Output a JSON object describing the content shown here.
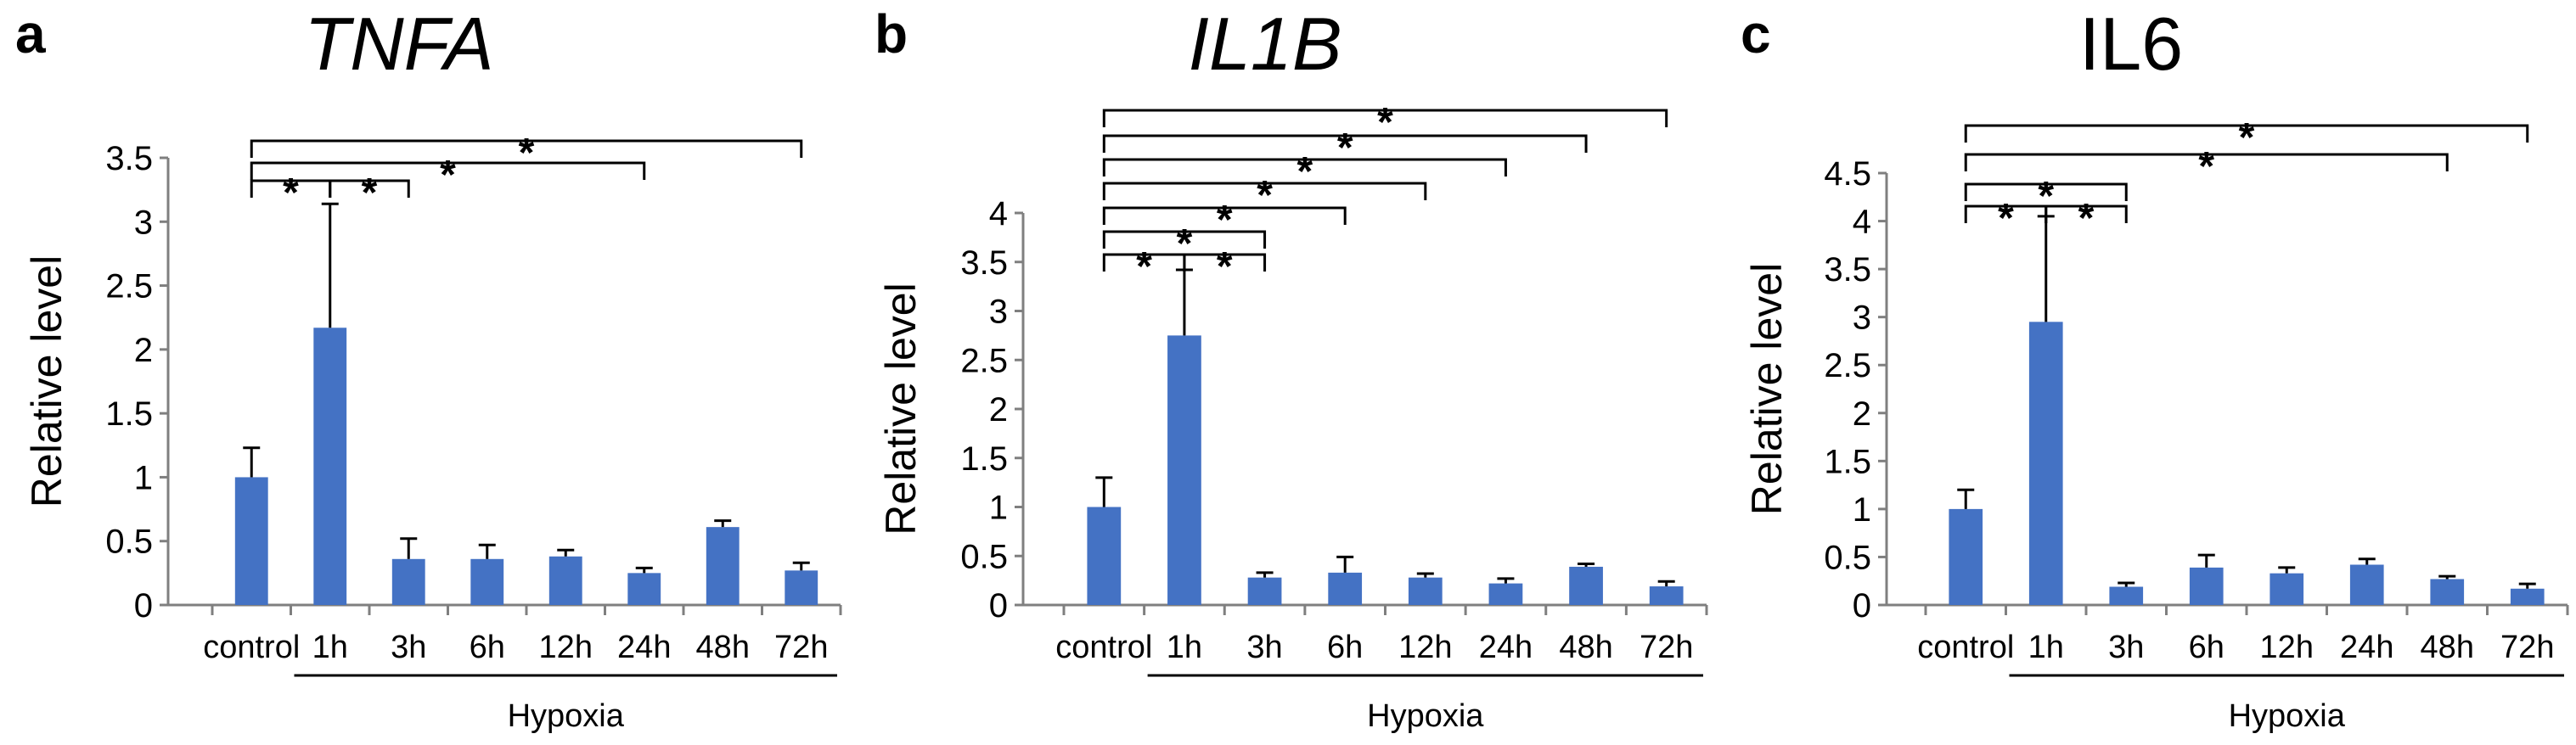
{
  "chart_data": [
    {
      "type": "bar",
      "panel": "a",
      "title": "TNFA",
      "title_italic": true,
      "xlabel": "",
      "ylabel": "Relative level",
      "group_label": "Hypoxia",
      "ylim": [
        0,
        3.5
      ],
      "yticks": [
        "0",
        "0.5",
        "1",
        "1.5",
        "2",
        "2.5",
        "3",
        "3.5"
      ],
      "categories": [
        "control",
        "1h",
        "3h",
        "6h",
        "12h",
        "24h",
        "48h",
        "72h"
      ],
      "values": [
        1.0,
        2.17,
        0.36,
        0.36,
        0.38,
        0.25,
        0.61,
        0.27
      ],
      "errors": [
        0.23,
        0.97,
        0.16,
        0.11,
        0.05,
        0.04,
        0.05,
        0.06
      ],
      "significance": [
        {
          "from": "control",
          "to": "1h",
          "label": "*"
        },
        {
          "from": "1h",
          "to": "3h",
          "label": "*"
        },
        {
          "from": "control",
          "to": "24h",
          "label": "*"
        },
        {
          "from": "control",
          "to": "72h",
          "label": "*"
        }
      ],
      "bar_color": "#4472c4"
    },
    {
      "type": "bar",
      "panel": "b",
      "title": "IL1B",
      "title_italic": true,
      "xlabel": "",
      "ylabel": "Relative level",
      "group_label": "Hypoxia",
      "ylim": [
        0,
        4
      ],
      "yticks": [
        "0",
        "0.5",
        "1",
        "1.5",
        "2",
        "2.5",
        "3",
        "3.5",
        "4"
      ],
      "categories": [
        "control",
        "1h",
        "3h",
        "6h",
        "12h",
        "24h",
        "48h",
        "72h"
      ],
      "values": [
        1.0,
        2.75,
        0.28,
        0.33,
        0.28,
        0.22,
        0.39,
        0.19
      ],
      "errors": [
        0.3,
        0.67,
        0.05,
        0.16,
        0.04,
        0.05,
        0.03,
        0.05
      ],
      "significance": [
        {
          "from": "control",
          "to": "1h",
          "label": "*"
        },
        {
          "from": "1h",
          "to": "3h",
          "label": "*"
        },
        {
          "from": "control",
          "to": "3h",
          "label": "*"
        },
        {
          "from": "control",
          "to": "6h",
          "label": "*"
        },
        {
          "from": "control",
          "to": "12h",
          "label": "*"
        },
        {
          "from": "control",
          "to": "24h",
          "label": "*"
        },
        {
          "from": "control",
          "to": "48h",
          "label": "*"
        },
        {
          "from": "control",
          "to": "72h",
          "label": "*"
        }
      ],
      "bar_color": "#4472c4"
    },
    {
      "type": "bar",
      "panel": "c",
      "title": "IL6",
      "title_italic": false,
      "xlabel": "",
      "ylabel": "Relative level",
      "group_label": "Hypoxia",
      "ylim": [
        0,
        4.5
      ],
      "yticks": [
        "0",
        "0.5",
        "1",
        "1.5",
        "2",
        "2.5",
        "3",
        "3.5",
        "4",
        "4.5"
      ],
      "categories": [
        "control",
        "1h",
        "3h",
        "6h",
        "12h",
        "24h",
        "48h",
        "72h"
      ],
      "values": [
        1.0,
        2.95,
        0.19,
        0.39,
        0.33,
        0.42,
        0.27,
        0.17
      ],
      "errors": [
        0.2,
        1.1,
        0.04,
        0.13,
        0.06,
        0.06,
        0.03,
        0.05
      ],
      "significance": [
        {
          "from": "control",
          "to": "1h",
          "label": "*"
        },
        {
          "from": "1h",
          "to": "3h",
          "label": "*"
        },
        {
          "from": "control",
          "to": "3h",
          "label": "*"
        },
        {
          "from": "control",
          "to": "48h",
          "label": "*"
        },
        {
          "from": "control",
          "to": "72h",
          "label": "*"
        }
      ],
      "bar_color": "#4472c4"
    }
  ]
}
